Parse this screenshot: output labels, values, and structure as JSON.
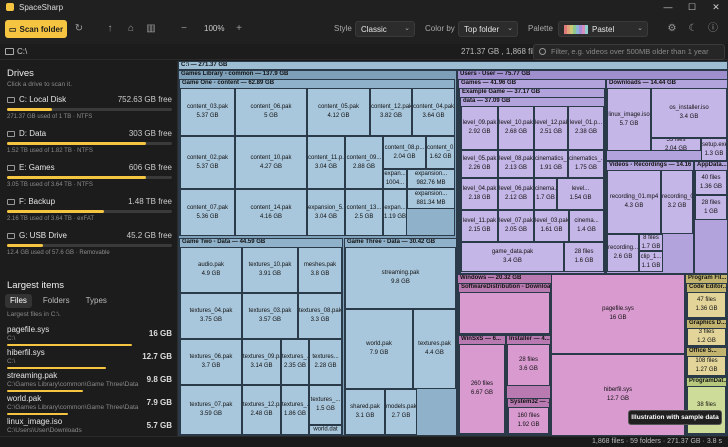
{
  "app": {
    "title": "SpaceSharp"
  },
  "toolbar": {
    "scan_label": "Scan folder",
    "zoom": "100%",
    "style_label": "Style",
    "style_value": "Classic",
    "color_label": "Color by",
    "color_value": "Top folder",
    "palette_label": "Palette",
    "palette_value": "Pastel",
    "palette_colors": [
      "#e07a7a",
      "#e0a27a",
      "#c9c977",
      "#8fc98f",
      "#8fb5d6",
      "#a58fd6",
      "#d68fc0",
      "#8fcfcf"
    ]
  },
  "pathbar": {
    "path": "C:\\",
    "stats": "271.37 GB , 1,868 files",
    "filter_placeholder": "Filter, e.g. videos over 500MB older than 1 year"
  },
  "sidebar": {
    "drives_title": "Drives",
    "drives_sub": "Click a drive to scan it.",
    "drives": [
      {
        "name": "C: Local Disk",
        "size": "752.63 GB free",
        "info": "271.37 GB used of 1 TB · NTFS",
        "used": 0.27
      },
      {
        "name": "D: Data",
        "size": "303 GB free",
        "info": "1.52 TB used of 1.82 TB · NTFS",
        "used": 0.84
      },
      {
        "name": "E: Games",
        "size": "606 GB free",
        "info": "3.05 TB used of 3.64 TB · NTFS",
        "used": 0.84
      },
      {
        "name": "F: Backup",
        "size": "1.48 TB free",
        "info": "2.16 TB used of 3.64 TB · exFAT",
        "used": 0.59
      },
      {
        "name": "G: USB Drive",
        "size": "45.2 GB free",
        "info": "12.4 GB used of 57.6 GB · Removable",
        "used": 0.22
      }
    ],
    "largest_title": "Largest items",
    "tabs": [
      "Files",
      "Folders",
      "Types"
    ],
    "largest_sub": "Largest files in C:\\.",
    "files": [
      {
        "name": "pagefile.sys",
        "path": "C:\\",
        "size": "16 GB",
        "rel": 1.0
      },
      {
        "name": "hiberfil.sys",
        "path": "C:\\",
        "size": "12.7 GB",
        "rel": 0.79
      },
      {
        "name": "streaming.pak",
        "path": "C:\\Games Library\\common\\Game Three\\Data",
        "size": "9.8 GB",
        "rel": 0.61
      },
      {
        "name": "world.pak",
        "path": "C:\\Games Library\\common\\Game Three\\Data",
        "size": "7.9 GB",
        "rel": 0.49
      },
      {
        "name": "linux_image.iso",
        "path": "C:\\Users\\User\\Downloads",
        "size": "5.7 GB",
        "rel": 0.36
      }
    ]
  },
  "treemap": {
    "root": "C:\\ — 271.37 GB",
    "groups": [
      {
        "label": "Games Library - common — 137.9 GB"
      },
      {
        "label": "Game One - content — 62.89 GB"
      },
      {
        "label": "Game Two - Data — 44.59 GB"
      },
      {
        "label": "Game Three - Data — 30.42 GB"
      },
      {
        "label": "Users - User — 75.77 GB"
      },
      {
        "label": "Games — 41.96 GB"
      },
      {
        "label": "Example Game — 37.17 GB"
      },
      {
        "label": "data — 37.09 GB"
      },
      {
        "label": "Downloads — 14.44 GB"
      },
      {
        "label": "Videos - Recordings — 14.16 ..."
      },
      {
        "label": "AppData..."
      },
      {
        "label": "Windows — 20.32 GB"
      },
      {
        "label": "SoftwareDistribution - Downloa..."
      },
      {
        "label": "WinSxS — 6..."
      },
      {
        "label": "Installer — 4..."
      },
      {
        "label": "System32 — ..."
      },
      {
        "label": "Program Fil..."
      },
      {
        "label": "Code Editor..."
      },
      {
        "label": "Graphics D..."
      },
      {
        "label": "Office S..."
      },
      {
        "label": "ProgramDat..."
      }
    ],
    "tiles": [
      {
        "n": "content_03.pak",
        "s": "5.37 GB"
      },
      {
        "n": "content_06.pak",
        "s": "5 GB"
      },
      {
        "n": "content_05.pak",
        "s": "4.12 GB"
      },
      {
        "n": "content_12.pak",
        "s": "3.82 GB"
      },
      {
        "n": "content_04.pak",
        "s": "3.64 GB"
      },
      {
        "n": "content_02.pak",
        "s": "5.37 GB"
      },
      {
        "n": "content_10.pak",
        "s": "4.27 GB"
      },
      {
        "n": "content_11.p...",
        "s": "3.04 GB"
      },
      {
        "n": "content_09...",
        "s": "2.88 GB"
      },
      {
        "n": "content_08.p...",
        "s": "2.04 GB"
      },
      {
        "n": "content_01...",
        "s": "1.62 GB"
      },
      {
        "n": "content_07.pak",
        "s": "5.36 GB"
      },
      {
        "n": "content_14.pak",
        "s": "4.16 GB"
      },
      {
        "n": "expansion_5...",
        "s": "3.04 GB"
      },
      {
        "n": "content_13...",
        "s": "2.5 GB"
      },
      {
        "n": "expan...",
        "s": "1004..."
      },
      {
        "n": "expansion...",
        "s": "982.76 MB"
      },
      {
        "n": "expansion...",
        "s": "881.34 MB"
      },
      {
        "n": "expan...",
        "s": "1.19 GB"
      },
      {
        "n": "audio.pak",
        "s": "4.9 GB"
      },
      {
        "n": "textures_10.pak",
        "s": "3.91 GB"
      },
      {
        "n": "meshes.pak",
        "s": "3.8 GB"
      },
      {
        "n": "textures_04.pak",
        "s": "3.75 GB"
      },
      {
        "n": "textures_03.pak",
        "s": "3.57 GB"
      },
      {
        "n": "textures_08.pak",
        "s": "3.3 GB"
      },
      {
        "n": "textures_06.pak",
        "s": "3.7 GB"
      },
      {
        "n": "textures_09.pak",
        "s": "3.14 GB"
      },
      {
        "n": "textures_...",
        "s": "2.35 GB"
      },
      {
        "n": "textures...",
        "s": "2.28 GB"
      },
      {
        "n": "textures_07.pak",
        "s": "3.59 GB"
      },
      {
        "n": "textures_12.pak",
        "s": "2.48 GB"
      },
      {
        "n": "textures_...",
        "s": "1.86 GB"
      },
      {
        "n": "textures_...",
        "s": "1.5 GB"
      },
      {
        "n": "world.dat",
        "s": ""
      },
      {
        "n": "streaming.pak",
        "s": "9.8 GB"
      },
      {
        "n": "world.pak",
        "s": "7.9 GB"
      },
      {
        "n": "textures.pak",
        "s": "4.4 GB"
      },
      {
        "n": "shared.pak",
        "s": "3.1 GB"
      },
      {
        "n": "models.pak",
        "s": "2.7 GB"
      },
      {
        "n": "level_09.pak",
        "s": "2.92 GB"
      },
      {
        "n": "level_10.pak",
        "s": "2.68 GB"
      },
      {
        "n": "level_12.pak",
        "s": "2.51 GB"
      },
      {
        "n": "level_01.p...",
        "s": "2.38 GB"
      },
      {
        "n": "level_05.pak",
        "s": "2.26 GB"
      },
      {
        "n": "level_08.pak",
        "s": "2.13 GB"
      },
      {
        "n": "cinematics_...",
        "s": "1.91 GB"
      },
      {
        "n": "cinematics_...",
        "s": "1.75 GB"
      },
      {
        "n": "level_04.pak",
        "s": "2.18 GB"
      },
      {
        "n": "level_06.pak",
        "s": "2.12 GB"
      },
      {
        "n": "cinema...",
        "s": "1.7 GB"
      },
      {
        "n": "level...",
        "s": "1.54 GB"
      },
      {
        "n": "level_11.pak",
        "s": "2.15 GB"
      },
      {
        "n": "level_07.pak",
        "s": "2.05 GB"
      },
      {
        "n": "level_03.pak",
        "s": "1.61 GB"
      },
      {
        "n": "cinema...",
        "s": "1.4 GB"
      },
      {
        "n": "game_data.pak",
        "s": "3.4 GB"
      },
      {
        "n": "28 files",
        "s": "1.6 GB"
      },
      {
        "n": "linux_image.iso",
        "s": "5.7 GB"
      },
      {
        "n": "os_installer.iso",
        "s": "3.4 GB"
      },
      {
        "n": "53 files",
        "s": "2.04 GB"
      },
      {
        "n": "setup.exe",
        "s": "1.3 GB"
      },
      {
        "n": "recording_01.mp4",
        "s": "4.3 GB"
      },
      {
        "n": "recording_02...",
        "s": "3.2 GB"
      },
      {
        "n": "recording...",
        "s": "2.6 GB"
      },
      {
        "n": "8 files",
        "s": "1.7 GB"
      },
      {
        "n": "clip_1...",
        "s": "1.1 GB"
      },
      {
        "n": "40 files",
        "s": "1.36 GB"
      },
      {
        "n": "28 files",
        "s": "1 GB"
      },
      {
        "n": "260 files",
        "s": "6.67 GB"
      },
      {
        "n": "28 files",
        "s": "3.6 GB"
      },
      {
        "n": "160 files",
        "s": "1.92 GB"
      },
      {
        "n": "pagefile.sys",
        "s": "16 GB"
      },
      {
        "n": "hiberfil.sys",
        "s": "12.7 GB"
      },
      {
        "n": "47 files",
        "s": "1.36 GB"
      },
      {
        "n": "3 files",
        "s": "1.2 GB"
      },
      {
        "n": "108 files",
        "s": "1.27 GB"
      },
      {
        "n": "38 files",
        "s": "..."
      }
    ]
  },
  "status": {
    "text": "1,868 files · 59 folders · 271.37 GB · 3.8 s",
    "toast": "Illustration with sample data"
  }
}
